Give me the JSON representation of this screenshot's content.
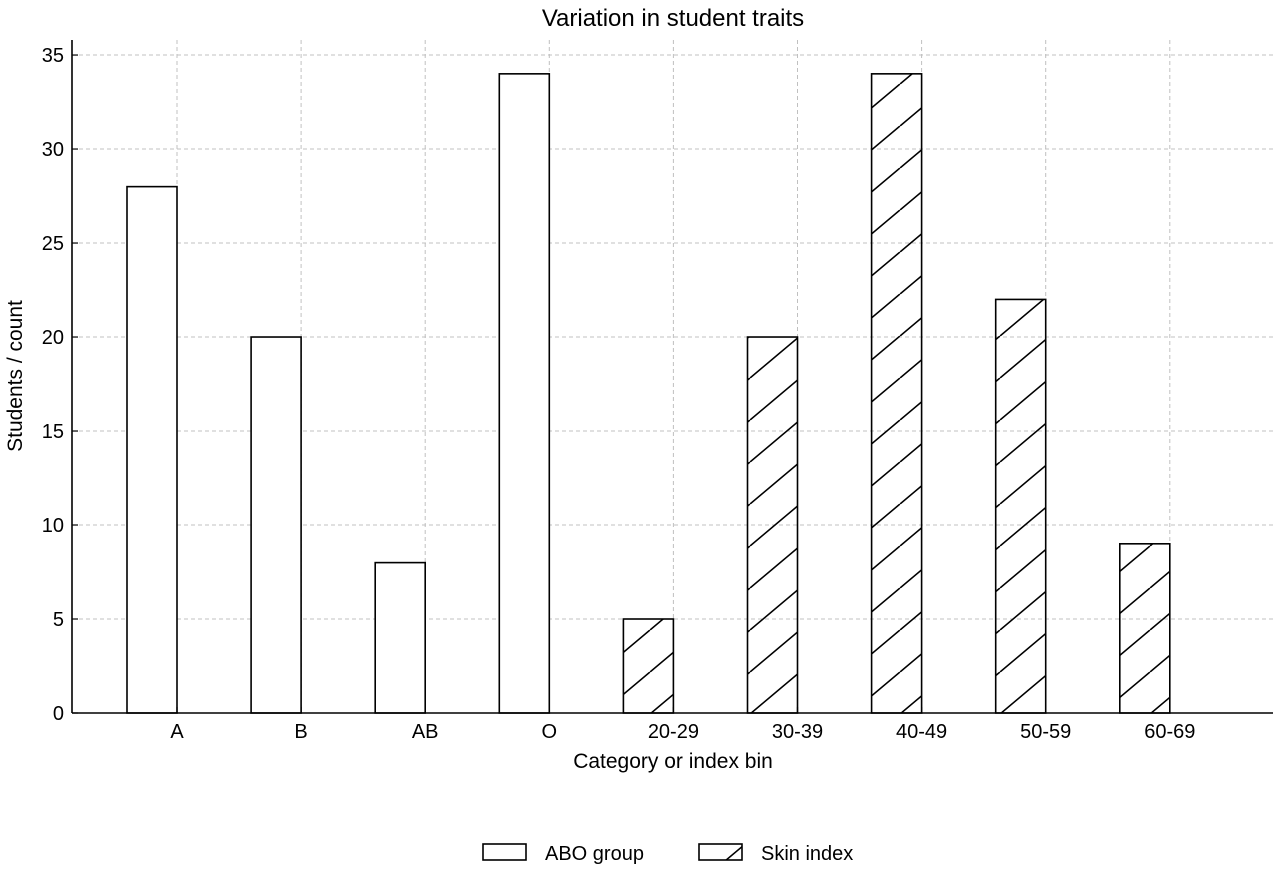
{
  "chart_data": {
    "type": "bar",
    "title": "Variation in student traits",
    "xlabel": "Category or index bin",
    "ylabel": "Students / count",
    "categories": [
      "A",
      "B",
      "AB",
      "O",
      "20-29",
      "30-39",
      "40-49",
      "50-59",
      "60-69"
    ],
    "series": [
      {
        "name": "ABO group",
        "pattern": "none",
        "values": [
          28,
          20,
          8,
          34,
          0,
          0,
          0,
          0,
          0
        ]
      },
      {
        "name": "Skin index",
        "pattern": "diagonal-hatch",
        "values": [
          0,
          0,
          0,
          0,
          5,
          20,
          34,
          22,
          9
        ]
      }
    ],
    "ylim": [
      0,
      35.8
    ],
    "yticks": [
      0,
      5,
      10,
      15,
      20,
      25,
      30,
      35
    ],
    "grid": true,
    "legend_position": "bottom-center",
    "colors": {
      "bar_fill": "#ffffff",
      "bar_edge": "#000000",
      "grid": "#c0c0c0"
    }
  }
}
